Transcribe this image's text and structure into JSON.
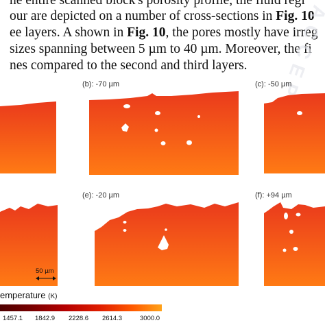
{
  "paragraph": {
    "line1": "he entire scanned block's porosity profile, the fluid regi",
    "line2_text": "our are depicted on a number of cross-sections in ",
    "line2_bold": "Fig. 10",
    "line3_text1": "ee layers. A shown in ",
    "line3_bold": "Fig. 10",
    "line3_text2": ", the pores mostly have irreg",
    "line4": "sizes spanning between 5 µm to 40 µm. Moreover, the fi",
    "line5": "nes compared to the second and third layers."
  },
  "figure": {
    "panels": [
      {
        "label": "(b): -70 µm"
      },
      {
        "label": "(c): -50 µm"
      },
      {
        "label": "(e): -20 µm"
      },
      {
        "label": "(f): +94 µm"
      }
    ],
    "scale_bar": "50 µm",
    "legend": {
      "title": "emperature",
      "unit": "(K)",
      "ticks": [
        "1457.1",
        "1842.9",
        "2228.6",
        "2614.3",
        "3000.0"
      ]
    },
    "colors": {
      "melt_top": "#f0401c",
      "melt_bottom": "#ff7a14",
      "pore": "#ffffff"
    }
  }
}
